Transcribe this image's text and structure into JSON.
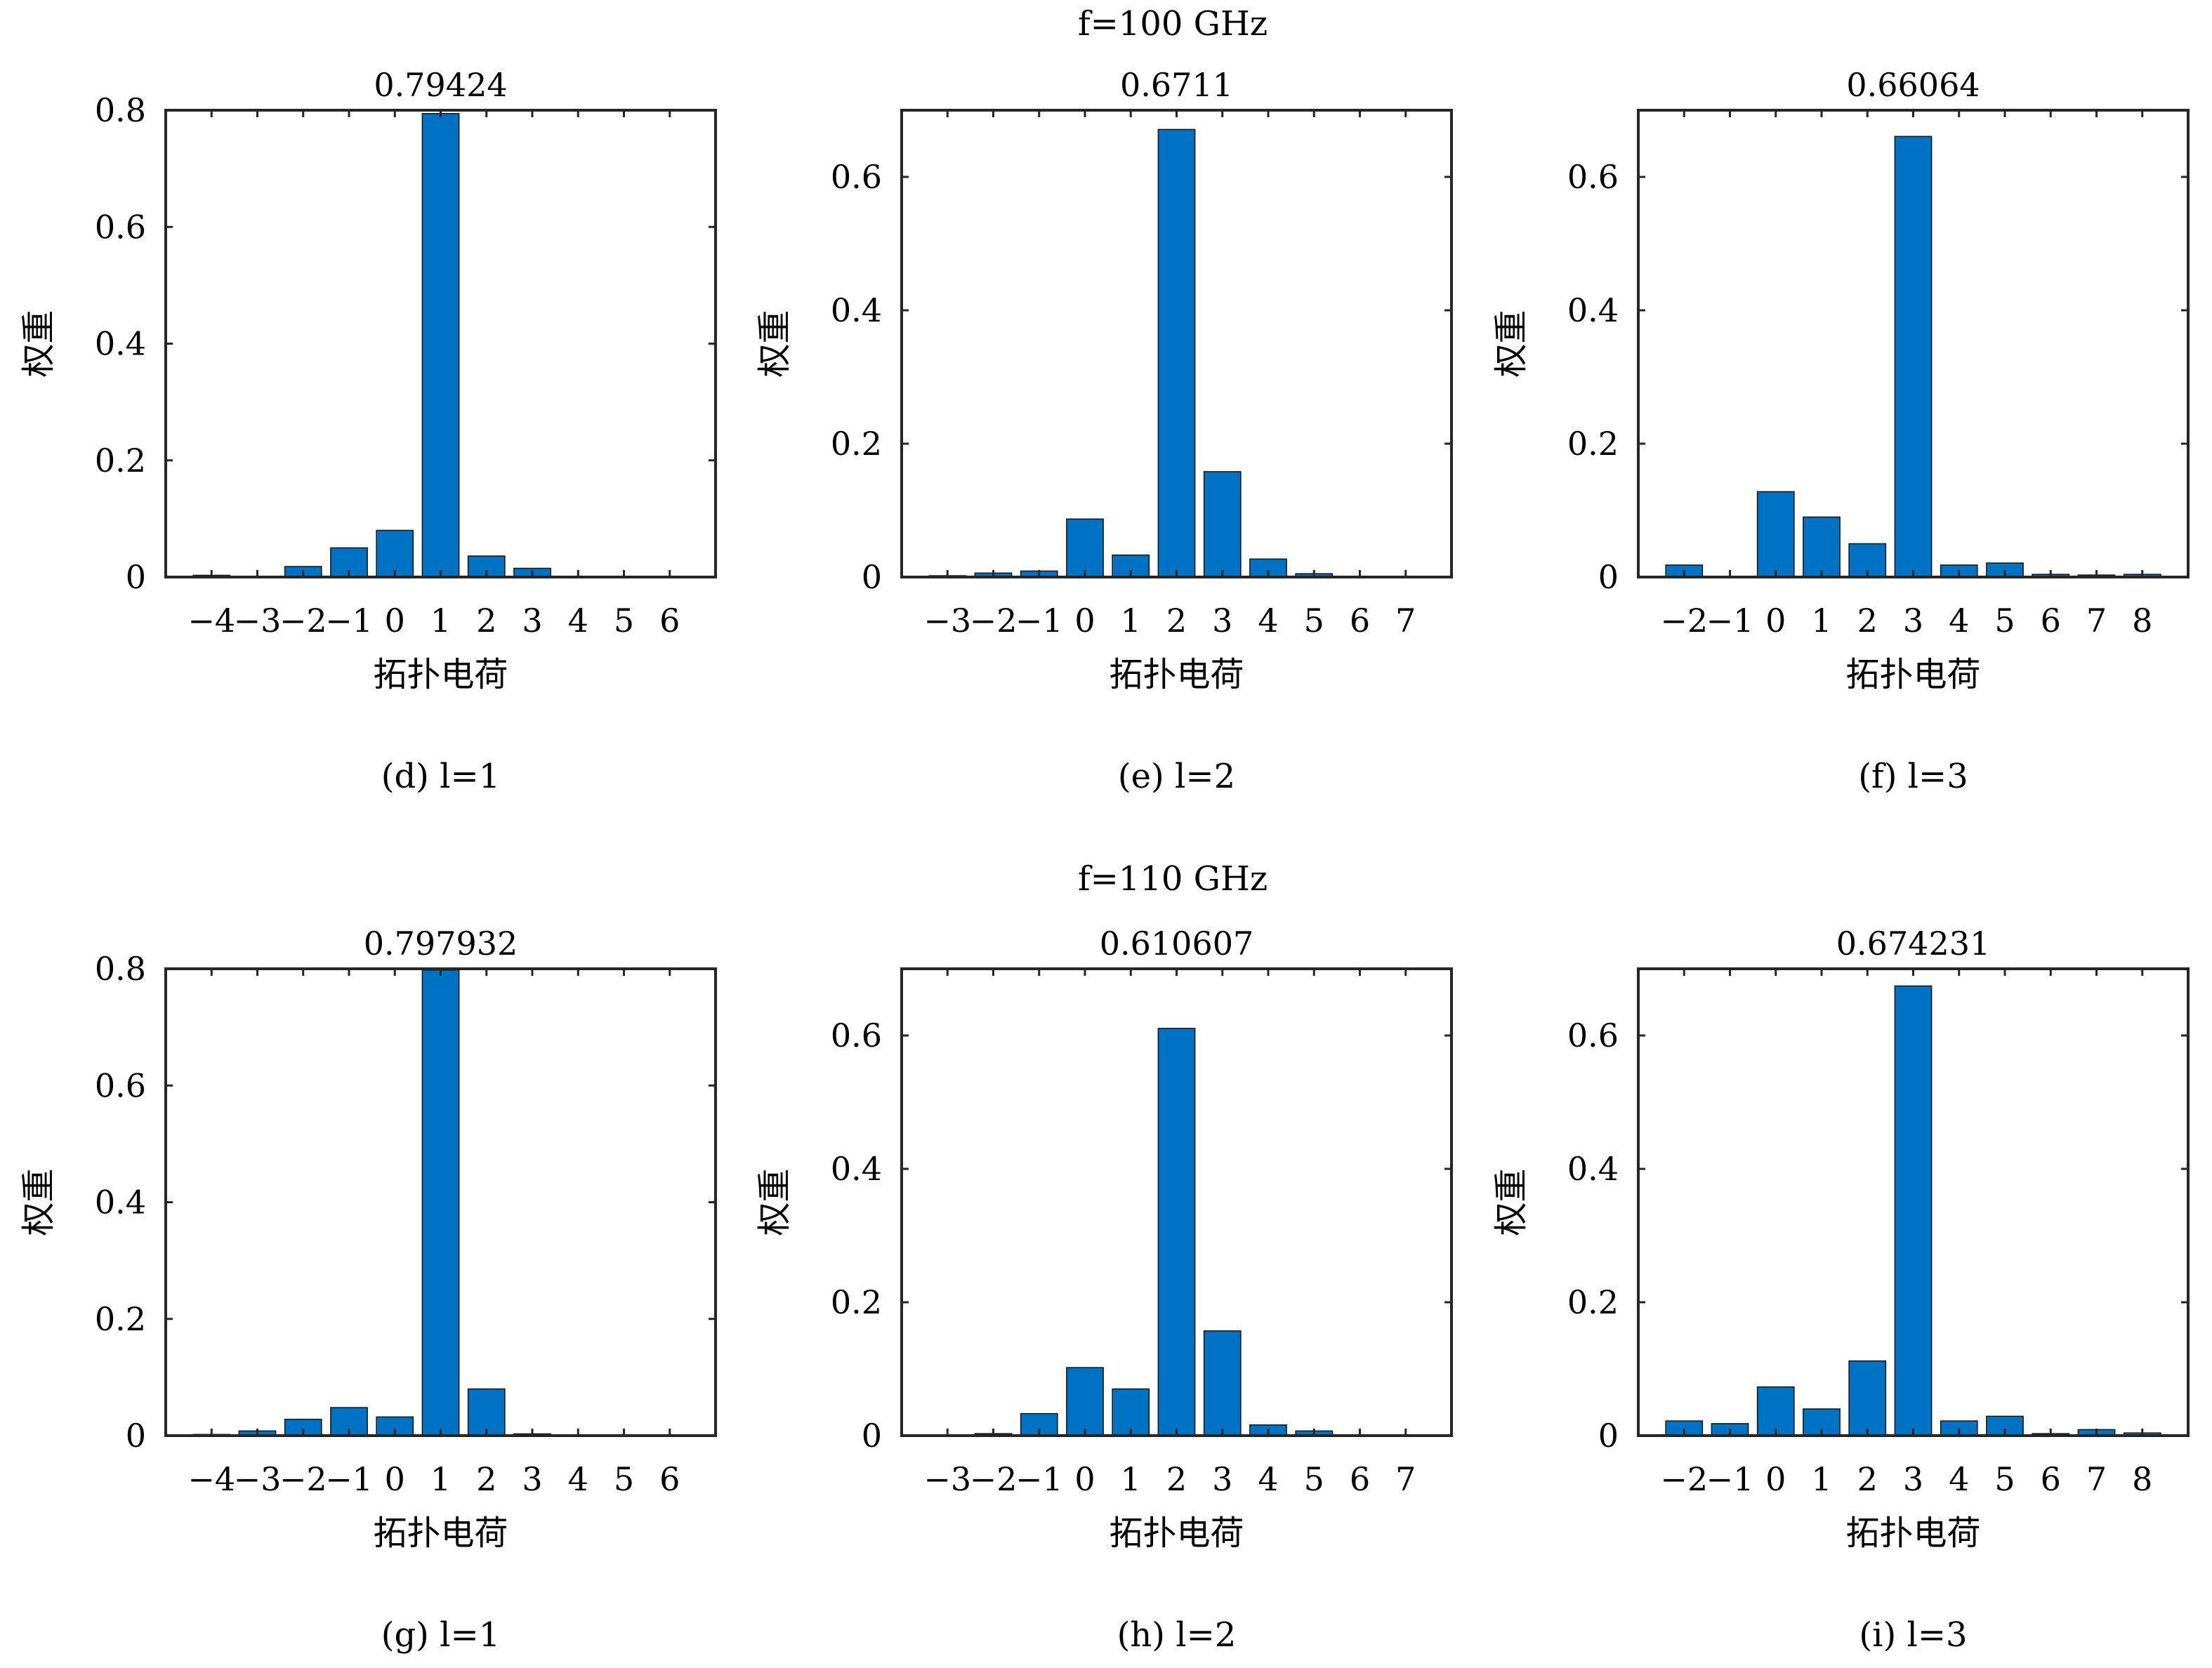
{
  "row_titles": [
    "f=100 GHz",
    "f=110 GHz"
  ],
  "chart_data": [
    {
      "type": "bar",
      "title": "0.79424",
      "caption": "(d) l=1",
      "xlabel": "拓扑电荷",
      "ylabel": "权重",
      "categories": [
        "−4",
        "−3",
        "−2",
        "−1",
        "0",
        "1",
        "2",
        "3",
        "4",
        "5",
        "6"
      ],
      "values": [
        0.003,
        0.0,
        0.018,
        0.05,
        0.08,
        0.79424,
        0.036,
        0.015,
        0.0,
        0.0,
        0.0
      ],
      "ylim": [
        0,
        0.8
      ],
      "yticks": [
        "0",
        "0.2",
        "0.4",
        "0.6",
        "0.8"
      ],
      "color": "#0072c3",
      "grid": false
    },
    {
      "type": "bar",
      "title": "0.6711",
      "caption": "(e) l=2",
      "xlabel": "拓扑电荷",
      "ylabel": "权重",
      "categories": [
        "−3",
        "−2",
        "−1",
        "0",
        "1",
        "2",
        "3",
        "4",
        "5",
        "6",
        "7"
      ],
      "values": [
        0.002,
        0.006,
        0.009,
        0.087,
        0.033,
        0.6711,
        0.158,
        0.027,
        0.005,
        0.0,
        0.0
      ],
      "ylim": [
        0,
        0.7
      ],
      "yticks": [
        "0",
        "0.2",
        "0.4",
        "0.6"
      ],
      "color": "#0072c3",
      "grid": false
    },
    {
      "type": "bar",
      "title": "0.66064",
      "caption": "(f) l=3",
      "xlabel": "拓扑电荷",
      "ylabel": "权重",
      "categories": [
        "−2",
        "−1",
        "0",
        "1",
        "2",
        "3",
        "4",
        "5",
        "6",
        "7",
        "8"
      ],
      "values": [
        0.018,
        0.0,
        0.128,
        0.09,
        0.05,
        0.66064,
        0.018,
        0.021,
        0.004,
        0.003,
        0.004
      ],
      "ylim": [
        0,
        0.7
      ],
      "yticks": [
        "0",
        "0.2",
        "0.4",
        "0.6"
      ],
      "color": "#0072c3",
      "grid": false
    },
    {
      "type": "bar",
      "title": "0.797932",
      "caption": "(g) l=1",
      "xlabel": "拓扑电荷",
      "ylabel": "权重",
      "categories": [
        "−4",
        "−3",
        "−2",
        "−1",
        "0",
        "1",
        "2",
        "3",
        "4",
        "5",
        "6"
      ],
      "values": [
        0.002,
        0.008,
        0.028,
        0.048,
        0.032,
        0.797932,
        0.08,
        0.003,
        0.0,
        0.0,
        0.0
      ],
      "ylim": [
        0,
        0.8
      ],
      "yticks": [
        "0",
        "0.2",
        "0.4",
        "0.6",
        "0.8"
      ],
      "color": "#0072c3",
      "grid": false
    },
    {
      "type": "bar",
      "title": "0.610607",
      "caption": "(h) l=2",
      "xlabel": "拓扑电荷",
      "ylabel": "权重",
      "categories": [
        "−3",
        "−2",
        "−1",
        "0",
        "1",
        "2",
        "3",
        "4",
        "5",
        "6",
        "7"
      ],
      "values": [
        0.0,
        0.003,
        0.033,
        0.102,
        0.07,
        0.610607,
        0.157,
        0.016,
        0.007,
        0.0,
        0.0
      ],
      "ylim": [
        0,
        0.7
      ],
      "yticks": [
        "0",
        "0.2",
        "0.4",
        "0.6"
      ],
      "color": "#0072c3",
      "grid": false
    },
    {
      "type": "bar",
      "title": "0.674231",
      "caption": "(i) l=3",
      "xlabel": "拓扑电荷",
      "ylabel": "权重",
      "categories": [
        "−2",
        "−1",
        "0",
        "1",
        "2",
        "3",
        "4",
        "5",
        "6",
        "7",
        "8"
      ],
      "values": [
        0.022,
        0.018,
        0.073,
        0.04,
        0.112,
        0.674231,
        0.022,
        0.029,
        0.003,
        0.009,
        0.004
      ],
      "ylim": [
        0,
        0.7
      ],
      "yticks": [
        "0",
        "0.2",
        "0.4",
        "0.6"
      ],
      "color": "#0072c3",
      "grid": false
    }
  ]
}
